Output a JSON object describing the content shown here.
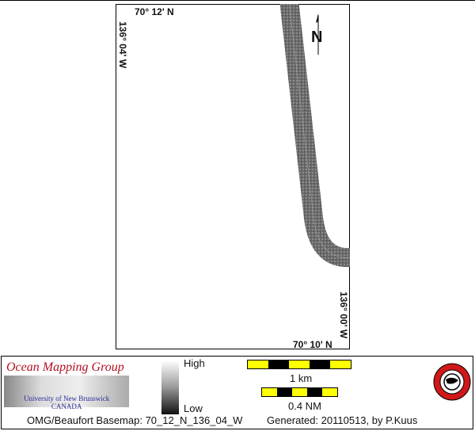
{
  "map": {
    "top_latitude_label": "70° 12' N",
    "bottom_latitude_label": "70° 10' N",
    "left_longitude_label": "136° 04' W",
    "right_longitude_label": "136° 00' W",
    "north_arrow_label": "N"
  },
  "legend": {
    "organization": "Ocean Mapping Group",
    "university": "University of New Brunswick",
    "country": "CANADA",
    "colorbar_high": "High",
    "colorbar_low": "Low",
    "scale_km_label": "1 km",
    "scale_nm_label": "0.4 NM",
    "scale_colors": {
      "light": "#ffff00",
      "dark": "#000000"
    },
    "footer_basemap": "OMG/Beaufort Basemap: 70_12_N_136_04_W",
    "footer_generated": "Generated: 20110513, by P.Kuus",
    "seal_text": "GEODESY AND GEOMATICS ENGINEERING UNB"
  }
}
